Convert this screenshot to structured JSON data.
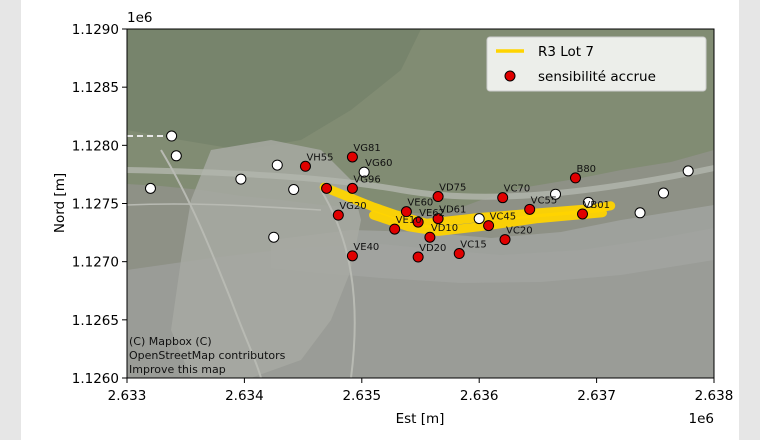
{
  "chart_data": {
    "type": "scatter",
    "title": "",
    "xlabel": "Est [m]",
    "ylabel": "Nord [m]",
    "x_offset_label": "1e6",
    "y_offset_label": "1e6",
    "xlim": [
      2.633,
      2.638
    ],
    "ylim": [
      1.126,
      1.129
    ],
    "x_ticks": [
      "2.633",
      "2.634",
      "2.635",
      "2.636",
      "2.637",
      "2.638"
    ],
    "y_ticks": [
      "1.1260",
      "1.1265",
      "1.1270",
      "1.1275",
      "1.1280",
      "1.1285",
      "1.1290"
    ],
    "grid": false,
    "legend_position": "top-right",
    "legend": [
      {
        "label": "R3 Lot 7",
        "kind": "line",
        "color": "#ffd400"
      },
      {
        "label": "sensibilité accrue",
        "kind": "marker",
        "color": "#e00000"
      }
    ],
    "attribution_lines": [
      "(C) Mapbox (C)",
      "OpenStreetMap contributors",
      "Improve this map"
    ],
    "route": {
      "name": "R3 Lot 7",
      "color": "#ffd400",
      "points": [
        [
          2.63468,
          1.12764
        ],
        [
          2.6349,
          1.12755
        ],
        [
          2.6351,
          1.12747
        ],
        [
          2.6353,
          1.1274
        ],
        [
          2.63555,
          1.12733
        ],
        [
          2.636,
          1.12738
        ],
        [
          2.6365,
          1.12742
        ],
        [
          2.637,
          1.12746
        ],
        [
          2.63712,
          1.12748
        ]
      ]
    },
    "route_branch": {
      "points": [
        [
          2.6351,
          1.1274
        ],
        [
          2.6354,
          1.1273
        ],
        [
          2.63565,
          1.12726
        ],
        [
          2.636,
          1.1273
        ],
        [
          2.6365,
          1.12737
        ],
        [
          2.63705,
          1.12742
        ]
      ]
    },
    "sensitive_points": [
      {
        "label": "VG81",
        "x": 2.63492,
        "y": 1.1279
      },
      {
        "label": "VH55",
        "x": 2.63452,
        "y": 1.12782
      },
      {
        "label": "",
        "x": 2.6347,
        "y": 1.12763
      },
      {
        "label": "VG96",
        "x": 2.63492,
        "y": 1.12763
      },
      {
        "label": "VG20",
        "x": 2.6348,
        "y": 1.1274
      },
      {
        "label": "VE60",
        "x": 2.63538,
        "y": 1.12743
      },
      {
        "label": "VE10",
        "x": 2.63528,
        "y": 1.12728
      },
      {
        "label": "VE62",
        "x": 2.63548,
        "y": 1.12734
      },
      {
        "label": "VD75",
        "x": 2.63565,
        "y": 1.12756
      },
      {
        "label": "VD61",
        "x": 2.63565,
        "y": 1.12737
      },
      {
        "label": "VD10",
        "x": 2.63558,
        "y": 1.12721
      },
      {
        "label": "VC45",
        "x": 2.63608,
        "y": 1.12731
      },
      {
        "label": "VC70",
        "x": 2.6362,
        "y": 1.12755
      },
      {
        "label": "VC55",
        "x": 2.63643,
        "y": 1.12745
      },
      {
        "label": "VC20",
        "x": 2.63622,
        "y": 1.12719
      },
      {
        "label": "VC15",
        "x": 2.63583,
        "y": 1.12707
      },
      {
        "label": "VD20",
        "x": 2.63548,
        "y": 1.12704
      },
      {
        "label": "VE40",
        "x": 2.63492,
        "y": 1.12705
      },
      {
        "label": "B80",
        "x": 2.63682,
        "y": 1.12772
      },
      {
        "label": "VB01",
        "x": 2.63688,
        "y": 1.12741
      }
    ],
    "other_points": [
      {
        "label": "",
        "x": 2.63338,
        "y": 1.12808
      },
      {
        "label": "",
        "x": 2.63342,
        "y": 1.12791
      },
      {
        "label": "",
        "x": 2.6332,
        "y": 1.12763
      },
      {
        "label": "",
        "x": 2.63397,
        "y": 1.12771
      },
      {
        "label": "",
        "x": 2.63428,
        "y": 1.12783
      },
      {
        "label": "",
        "x": 2.63442,
        "y": 1.12762
      },
      {
        "label": "",
        "x": 2.63425,
        "y": 1.12721
      },
      {
        "label": "VG60",
        "x": 2.63502,
        "y": 1.12777
      },
      {
        "label": "",
        "x": 2.636,
        "y": 1.12737
      },
      {
        "label": "",
        "x": 2.63665,
        "y": 1.12758
      },
      {
        "label": "",
        "x": 2.63693,
        "y": 1.12751
      },
      {
        "label": "",
        "x": 2.63737,
        "y": 1.12742
      },
      {
        "label": "",
        "x": 2.63757,
        "y": 1.12759
      },
      {
        "label": "",
        "x": 2.63778,
        "y": 1.12778
      }
    ]
  }
}
